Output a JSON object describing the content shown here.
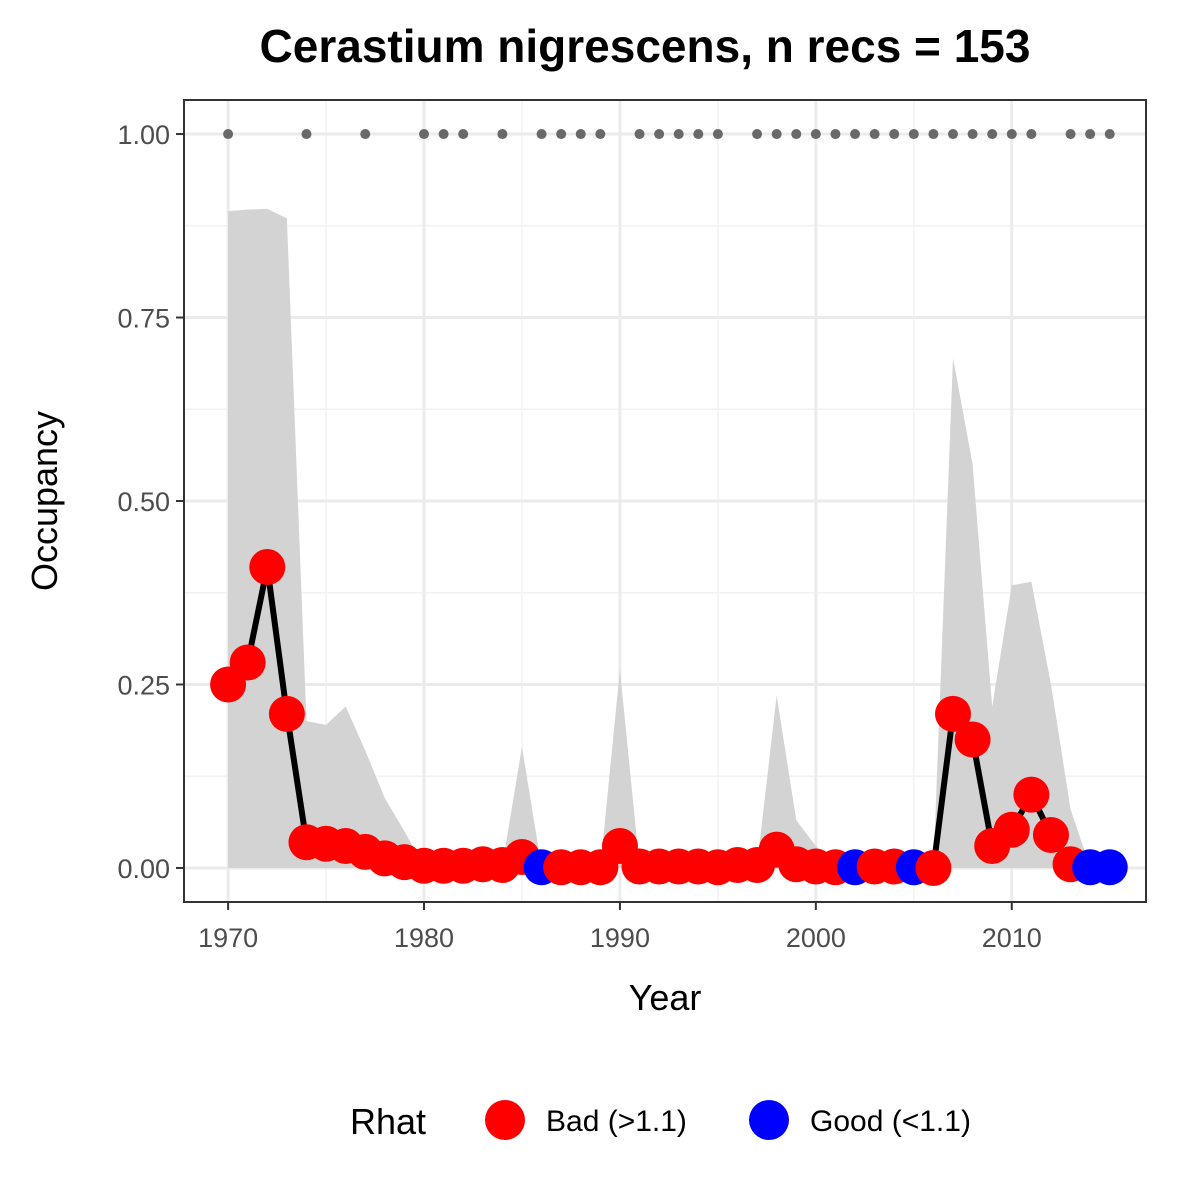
{
  "chart_data": {
    "type": "line",
    "title": "Cerastium nigrescens, n recs = 153",
    "xlabel": "Year",
    "ylabel": "Occupancy",
    "xlim": [
      1967.8,
      2016.8
    ],
    "ylim": [
      -0.045,
      1.045
    ],
    "x_ticks": [
      {
        "value": 1970,
        "label": "1970"
      },
      {
        "value": 1980,
        "label": "1980"
      },
      {
        "value": 1990,
        "label": "1990"
      },
      {
        "value": 2000,
        "label": "2000"
      },
      {
        "value": 2010,
        "label": "2010"
      }
    ],
    "y_ticks": [
      {
        "value": 0.0,
        "label": "0.00"
      },
      {
        "value": 0.25,
        "label": "0.25"
      },
      {
        "value": 0.5,
        "label": "0.50"
      },
      {
        "value": 0.75,
        "label": "0.75"
      },
      {
        "value": 1.0,
        "label": "1.00"
      }
    ],
    "grid": true,
    "legend": {
      "title": "Rhat",
      "position": "bottom",
      "entries": [
        {
          "key": "bad",
          "label": "Bad (>1.1)",
          "color": "#ff0000"
        },
        {
          "key": "good",
          "label": "Good (<1.1)",
          "color": "#0000ff"
        }
      ]
    },
    "colors": {
      "ribbon": "#d3d3d3",
      "line": "#000000",
      "record_dots": "#696969",
      "bad": "#ff0000",
      "good": "#0000ff"
    },
    "x": [
      1970,
      1971,
      1972,
      1973,
      1974,
      1975,
      1976,
      1977,
      1978,
      1979,
      1980,
      1981,
      1982,
      1983,
      1984,
      1985,
      1986,
      1987,
      1988,
      1989,
      1990,
      1991,
      1992,
      1993,
      1994,
      1995,
      1996,
      1997,
      1998,
      1999,
      2000,
      2001,
      2002,
      2003,
      2004,
      2005,
      2006,
      2007,
      2008,
      2009,
      2010,
      2011,
      2012,
      2013,
      2014,
      2015
    ],
    "occupancy": [
      0.25,
      0.28,
      0.41,
      0.21,
      0.035,
      0.033,
      0.03,
      0.022,
      0.013,
      0.008,
      0.003,
      0.003,
      0.003,
      0.005,
      0.004,
      0.015,
      0.001,
      0.001,
      0.001,
      0.001,
      0.03,
      0.002,
      0.002,
      0.002,
      0.002,
      0.001,
      0.004,
      0.004,
      0.025,
      0.005,
      0.002,
      0.001,
      0.001,
      0.002,
      0.002,
      0.001,
      0.0,
      0.21,
      0.175,
      0.03,
      0.052,
      0.1,
      0.045,
      0.005,
      0.001,
      0.001
    ],
    "lower": [
      0,
      0,
      0,
      0,
      0,
      0,
      0,
      0,
      0,
      0,
      0,
      0,
      0,
      0,
      0,
      0,
      0,
      0,
      0,
      0,
      0,
      0,
      0,
      0,
      0,
      0,
      0,
      0,
      0,
      0,
      0,
      0,
      0,
      0,
      0,
      0,
      0,
      0,
      0,
      0,
      0,
      0,
      0,
      0,
      0,
      0
    ],
    "upper": [
      0.895,
      0.897,
      0.898,
      0.885,
      0.2,
      0.195,
      0.22,
      0.16,
      0.095,
      0.05,
      0.003,
      0.003,
      0.003,
      0.005,
      0.004,
      0.165,
      0.001,
      0.001,
      0.001,
      0.001,
      0.27,
      0.002,
      0.002,
      0.002,
      0.002,
      0.001,
      0.004,
      0.004,
      0.235,
      0.065,
      0.03,
      0.001,
      0.001,
      0.002,
      0.002,
      0.001,
      0.0,
      0.695,
      0.55,
      0.22,
      0.385,
      0.39,
      0.25,
      0.08,
      0.001,
      0.001
    ],
    "rhat": [
      "bad",
      "bad",
      "bad",
      "bad",
      "bad",
      "bad",
      "bad",
      "bad",
      "bad",
      "bad",
      "bad",
      "bad",
      "bad",
      "bad",
      "bad",
      "bad",
      "good",
      "bad",
      "bad",
      "bad",
      "bad",
      "bad",
      "bad",
      "bad",
      "bad",
      "bad",
      "bad",
      "bad",
      "bad",
      "bad",
      "bad",
      "bad",
      "good",
      "bad",
      "bad",
      "good",
      "bad",
      "bad",
      "bad",
      "bad",
      "bad",
      "bad",
      "bad",
      "bad",
      "good",
      "good"
    ],
    "record_years": [
      1970,
      1974,
      1977,
      1980,
      1981,
      1982,
      1984,
      1986,
      1987,
      1988,
      1989,
      1991,
      1992,
      1993,
      1994,
      1995,
      1997,
      1998,
      1999,
      2000,
      2001,
      2002,
      2003,
      2004,
      2005,
      2006,
      2007,
      2008,
      2009,
      2010,
      2011,
      2013,
      2014,
      2015
    ],
    "record_value": 1.0
  }
}
